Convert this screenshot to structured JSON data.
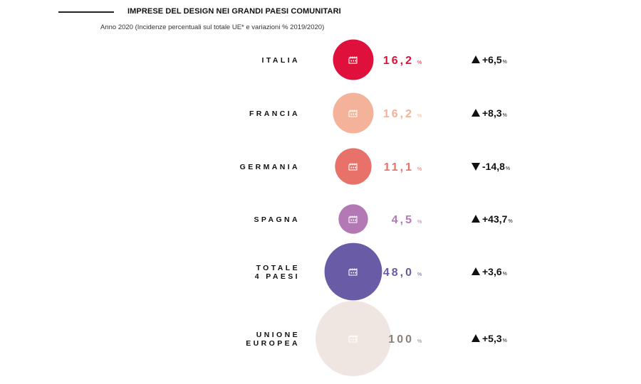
{
  "header": {
    "title": "IMPRESE DEL DESIGN NEI GRANDI PAESI COMUNITARI",
    "subtitle": "Anno 2020 (Incidenze percentuali sul totale UE* e variazioni % 2019/2020)"
  },
  "chart_data": {
    "type": "bubble",
    "title": "IMPRESE DEL DESIGN NEI GRANDI PAESI COMUNITARI",
    "subtitle": "Anno 2020 (Incidenze percentuali sul totale UE* e variazioni % 2019/2020)",
    "value_unit": "%",
    "rows": [
      {
        "label": [
          "ITALIA"
        ],
        "share": 16.2,
        "share_text": "16,2",
        "change": 6.5,
        "change_text": "+6,5",
        "direction": "up",
        "color": "#e0103c"
      },
      {
        "label": [
          "FRANCIA"
        ],
        "share": 16.2,
        "share_text": "16,2",
        "change": 8.3,
        "change_text": "+8,3",
        "direction": "up",
        "color": "#f4b29a"
      },
      {
        "label": [
          "GERMANIA"
        ],
        "share": 11.1,
        "share_text": "11,1",
        "change": -14.8,
        "change_text": "-14,8",
        "direction": "down",
        "color": "#e8716a"
      },
      {
        "label": [
          "SPAGNA"
        ],
        "share": 4.5,
        "share_text": "4,5",
        "change": 43.7,
        "change_text": "+43,7",
        "direction": "up",
        "color": "#b379b5"
      },
      {
        "label": [
          "TOTALE",
          "4 PAESI"
        ],
        "share": 48.0,
        "share_text": "48,0",
        "change": 3.6,
        "change_text": "+3,6",
        "direction": "up",
        "color": "#6a5ba6"
      },
      {
        "label": [
          "UNIONE",
          "EUROPEA"
        ],
        "share": 100,
        "share_text": "100",
        "change": 5.3,
        "change_text": "+5,3",
        "direction": "up",
        "color": "#efe6e2",
        "value_color": "#8a807c"
      }
    ]
  },
  "icons": {
    "bubble_icon": "factory-icon",
    "up": "triangle-up-icon",
    "down": "triangle-down-icon"
  }
}
